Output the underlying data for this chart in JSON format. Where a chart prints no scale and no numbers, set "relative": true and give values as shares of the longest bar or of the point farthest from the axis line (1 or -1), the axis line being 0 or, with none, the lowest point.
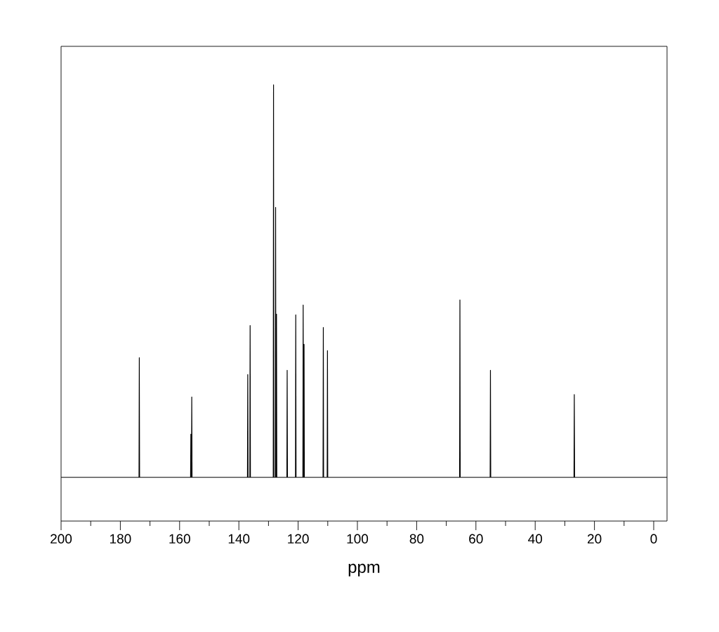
{
  "chart_data": {
    "type": "line",
    "relative": true,
    "xlabel": "ppm",
    "xlim": [
      200,
      -4.5
    ],
    "xticks": [
      200,
      180,
      160,
      140,
      120,
      100,
      80,
      60,
      40,
      20,
      0
    ],
    "series": [
      {
        "color": "#000000",
        "x": [
          200,
          173.7,
          173.6,
          173.5,
          156.3,
          156.2,
          156.1,
          156.0,
          155.9,
          155.8,
          137.1,
          137.0,
          136.9,
          136.3,
          136.2,
          136.1,
          128.4,
          128.3,
          128.2,
          127.7,
          127.6,
          127.5,
          127.4,
          127.3,
          127.2,
          123.8,
          123.7,
          123.6,
          120.9,
          120.8,
          120.7,
          118.4,
          118.3,
          118.2,
          118.1,
          118.0,
          117.9,
          111.6,
          111.5,
          111.4,
          110.2,
          110.1,
          110.0,
          65.5,
          65.4,
          65.3,
          55.2,
          55.1,
          55.0,
          26.9,
          26.8,
          26.7,
          -4.5
        ],
        "values": [
          0,
          0,
          0.305,
          0,
          0,
          0.11,
          0,
          0,
          0.205,
          0,
          0,
          0.262,
          0,
          0,
          0.387,
          0,
          0,
          1,
          0,
          0,
          0.688,
          0,
          0,
          0.416,
          0,
          0,
          0.273,
          0,
          0,
          0.414,
          0,
          0,
          0.439,
          0,
          0,
          0.339,
          0,
          0,
          0.382,
          0,
          0,
          0.323,
          0,
          0,
          0.452,
          0,
          0,
          0.273,
          0,
          0,
          0.211,
          0,
          0
        ]
      }
    ]
  }
}
